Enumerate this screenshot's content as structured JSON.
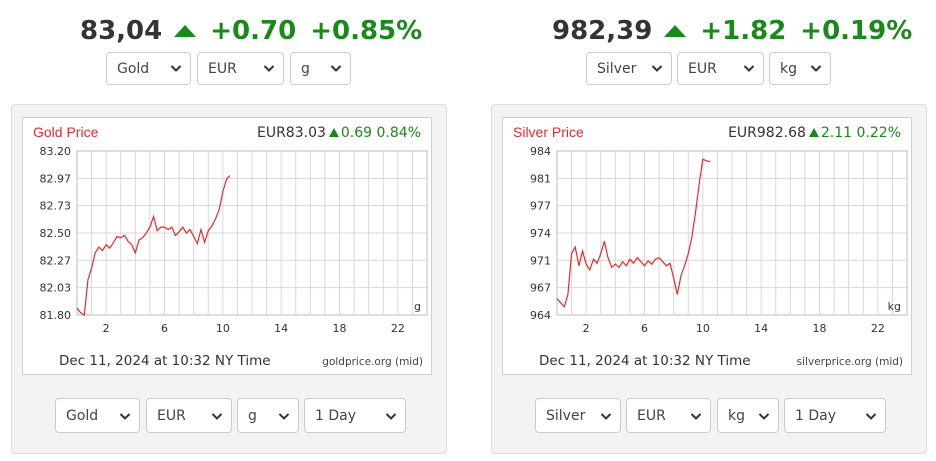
{
  "colors": {
    "up": "#178a17",
    "line": "#e8292a",
    "grid": "#d8d8d8"
  },
  "widgets": [
    {
      "header": {
        "price": "83,04",
        "change": "+0.70",
        "percent": "+0.85%"
      },
      "top_selects": {
        "metal": "Gold",
        "currency": "EUR",
        "unit": "g"
      },
      "chart": {
        "title": "Gold Price",
        "quote_price": "EUR83.03",
        "quote_change": "0.69",
        "quote_percent": "0.84%",
        "date_text": "Dec 11, 2024 at 10:32 NY Time",
        "source": "goldprice.org (mid)",
        "unit_label": "g"
      },
      "bottom_selects": {
        "metal": "Gold",
        "currency": "EUR",
        "unit": "g",
        "range": "1 Day"
      }
    },
    {
      "header": {
        "price": "982,39",
        "change": "+1.82",
        "percent": "+0.19%"
      },
      "top_selects": {
        "metal": "Silver",
        "currency": "EUR",
        "unit": "kg"
      },
      "chart": {
        "title": "Silver Price",
        "quote_price": "EUR982.68",
        "quote_change": "2.11",
        "quote_percent": "0.22%",
        "date_text": "Dec 11, 2024 at 10:32 NY Time",
        "source": "silverprice.org (mid)",
        "unit_label": "kg"
      },
      "bottom_selects": {
        "metal": "Silver",
        "currency": "EUR",
        "unit": "kg",
        "range": "1 Day"
      }
    }
  ],
  "chart_data": [
    {
      "type": "line",
      "title": "Gold Price",
      "xlabel": "",
      "ylabel": "",
      "x_ticks": [
        "2",
        "6",
        "10",
        "14",
        "18",
        "22"
      ],
      "y_ticks": [
        "83.20",
        "82.97",
        "82.73",
        "82.50",
        "82.27",
        "82.03",
        "81.80"
      ],
      "xlim": [
        0,
        24
      ],
      "ylim": [
        81.8,
        83.2
      ],
      "grid": true,
      "series": [
        {
          "x": [
            0.0,
            0.25,
            0.5,
            0.75,
            1.0,
            1.25,
            1.5,
            1.75,
            2.0,
            2.25,
            2.5,
            2.75,
            3.0,
            3.25,
            3.5,
            3.75,
            4.0,
            4.25,
            4.5,
            4.75,
            5.0,
            5.25,
            5.5,
            5.75,
            6.0,
            6.25,
            6.5,
            6.75,
            7.0,
            7.25,
            7.5,
            7.75,
            8.0,
            8.25,
            8.5,
            8.75,
            9.0,
            9.25,
            9.5,
            9.75,
            10.0,
            10.25,
            10.5
          ],
          "y": [
            81.86,
            81.82,
            81.8,
            82.1,
            82.2,
            82.33,
            82.38,
            82.35,
            82.4,
            82.37,
            82.42,
            82.47,
            82.46,
            82.48,
            82.43,
            82.4,
            82.33,
            82.44,
            82.46,
            82.5,
            82.55,
            82.64,
            82.52,
            82.55,
            82.55,
            82.53,
            82.55,
            82.48,
            82.51,
            82.55,
            82.5,
            82.53,
            82.47,
            82.41,
            82.53,
            82.42,
            82.52,
            82.56,
            82.62,
            82.7,
            82.85,
            82.96,
            82.99
          ]
        }
      ]
    },
    {
      "type": "line",
      "title": "Silver Price",
      "xlabel": "",
      "ylabel": "",
      "x_ticks": [
        "2",
        "6",
        "10",
        "14",
        "18",
        "22"
      ],
      "y_ticks": [
        "984",
        "981",
        "977",
        "974",
        "971",
        "967",
        "964"
      ],
      "xlim": [
        0,
        24
      ],
      "ylim": [
        964,
        984
      ],
      "grid": true,
      "series": [
        {
          "x": [
            0.0,
            0.25,
            0.5,
            0.75,
            1.0,
            1.25,
            1.5,
            1.75,
            2.0,
            2.25,
            2.5,
            2.75,
            3.0,
            3.25,
            3.5,
            3.75,
            4.0,
            4.25,
            4.5,
            4.75,
            5.0,
            5.25,
            5.5,
            5.75,
            6.0,
            6.25,
            6.5,
            6.75,
            7.0,
            7.25,
            7.5,
            7.75,
            8.0,
            8.25,
            8.5,
            8.75,
            9.0,
            9.25,
            9.5,
            9.75,
            10.0,
            10.25,
            10.5
          ],
          "y": [
            966.0,
            965.5,
            965.0,
            966.5,
            971.5,
            972.3,
            970.0,
            971.8,
            970.2,
            969.5,
            970.8,
            970.3,
            971.5,
            973.0,
            971.0,
            969.8,
            970.2,
            969.8,
            970.5,
            970.0,
            970.8,
            970.3,
            971.0,
            970.5,
            970.0,
            970.6,
            970.2,
            970.8,
            971.0,
            970.5,
            970.0,
            970.3,
            968.5,
            966.5,
            968.8,
            970.0,
            971.5,
            973.5,
            976.5,
            980.0,
            983.0,
            982.8,
            982.7
          ]
        }
      ]
    }
  ]
}
